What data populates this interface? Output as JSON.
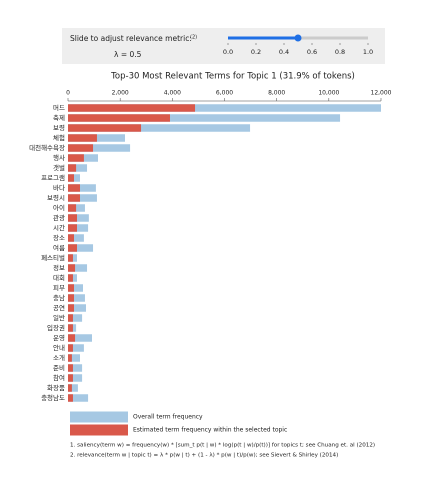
{
  "slider": {
    "label": "Slide to adjust relevance metric:",
    "footnote_ref": "(2)",
    "lambda_label": "λ = 0.5",
    "value": 0.5,
    "lim": [
      0,
      1
    ],
    "ticks": [
      {
        "value": 0,
        "label": "0.0"
      },
      {
        "value": 0.2,
        "label": "0.2"
      },
      {
        "value": 0.4,
        "label": "0.4"
      },
      {
        "value": 0.6,
        "label": "0.6"
      },
      {
        "value": 0.8,
        "label": "0.8"
      },
      {
        "value": 1,
        "label": "1.0"
      }
    ]
  },
  "chart_data": {
    "type": "bar",
    "orientation": "horizontal",
    "overlay": true,
    "title": "Top-30 Most Relevant Terms for Topic 1 (31.9% of tokens)",
    "categories": [
      "머드",
      "축제",
      "보령",
      "체험",
      "대천해수욕장",
      "행사",
      "갯벌",
      "프로그램",
      "바다",
      "보령시",
      "아이",
      "관광",
      "시간",
      "장소",
      "여름",
      "페스티벌",
      "정보",
      "대회",
      "피부",
      "충남",
      "공연",
      "일반",
      "입장권",
      "운영",
      "안내",
      "소개",
      "준비",
      "참여",
      "화장품",
      "충청남도"
    ],
    "series": [
      {
        "name": "Overall term frequency",
        "color": "#a6c8e3",
        "values": [
          12000,
          10430,
          6980,
          2185,
          2380,
          1150,
          730,
          460,
          1070,
          1110,
          650,
          800,
          770,
          610,
          960,
          345,
          730,
          345,
          575,
          650,
          690,
          540,
          310,
          920,
          610,
          460,
          540,
          540,
          380,
          770
        ]
      },
      {
        "name": "Estimated term frequency within the selected topic",
        "color": "#d9584a",
        "values": [
          4870,
          3910,
          2800,
          1110,
          960,
          610,
          310,
          230,
          460,
          460,
          310,
          345,
          345,
          230,
          345,
          190,
          270,
          190,
          230,
          230,
          230,
          190,
          190,
          270,
          190,
          150,
          190,
          190,
          150,
          190
        ]
      }
    ],
    "xlim": [
      0,
      12000
    ],
    "xticks": [
      0,
      {
        "value": 2000,
        "label": "2,000"
      },
      {
        "value": 4000,
        "label": "4,000"
      },
      {
        "value": 6000,
        "label": "6,000"
      },
      {
        "value": 8000,
        "label": "8,000"
      },
      {
        "value": 10000,
        "label": "10,000"
      },
      {
        "value": 12000,
        "label": "12,000"
      }
    ]
  },
  "notes": [
    "1. saliency(term w) = frequency(w) * [sum_t p(t | w) * log(p(t | w)/p(t))] for topics t; see Chuang et. al (2012)",
    "2. relevance(term w | topic t) = λ * p(w | t) + (1 - λ) * p(w | t)/p(w); see Sievert & Shirley (2014)"
  ]
}
